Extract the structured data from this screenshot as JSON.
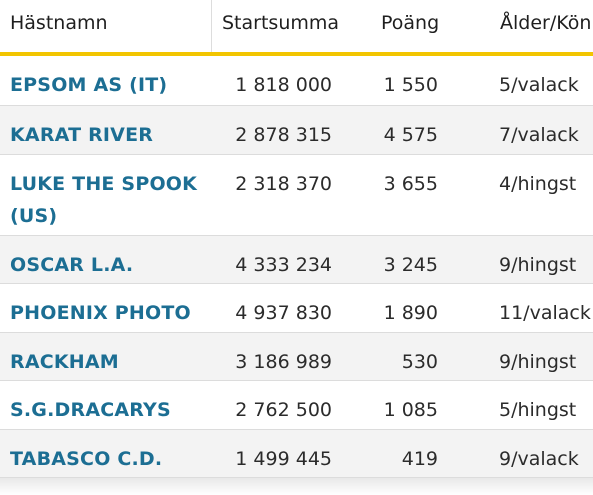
{
  "table": {
    "headers": {
      "name": "Hästnamn",
      "sum": "Startsumma",
      "points": "Poäng",
      "age_sex": "Ålder/Kön"
    },
    "rows": [
      {
        "name": "EPSOM AS (IT)",
        "sum": "1 818 000",
        "points": "1 550",
        "age_sex": "5/valack"
      },
      {
        "name": "KARAT RIVER",
        "sum": "2 878 315",
        "points": "4 575",
        "age_sex": "7/valack"
      },
      {
        "name": "LUKE THE SPOOK (US)",
        "sum": "2 318 370",
        "points": "3 655",
        "age_sex": "4/hingst"
      },
      {
        "name": "OSCAR L.A.",
        "sum": "4 333 234",
        "points": "3 245",
        "age_sex": "9/hingst"
      },
      {
        "name": "PHOENIX PHOTO",
        "sum": "4 937 830",
        "points": "1 890",
        "age_sex": "11/valack"
      },
      {
        "name": "RACKHAM",
        "sum": "3 186 989",
        "points": "530",
        "age_sex": "9/hingst"
      },
      {
        "name": "S.G.DRACARYS",
        "sum": "2 762 500",
        "points": "1 085",
        "age_sex": "5/hingst"
      },
      {
        "name": "TABASCO C.D.",
        "sum": "1 499 445",
        "points": "419",
        "age_sex": "9/valack"
      }
    ]
  },
  "colors": {
    "accent": "#f2c500",
    "link": "#1c6e93",
    "row_alt": "#f3f3f3"
  }
}
